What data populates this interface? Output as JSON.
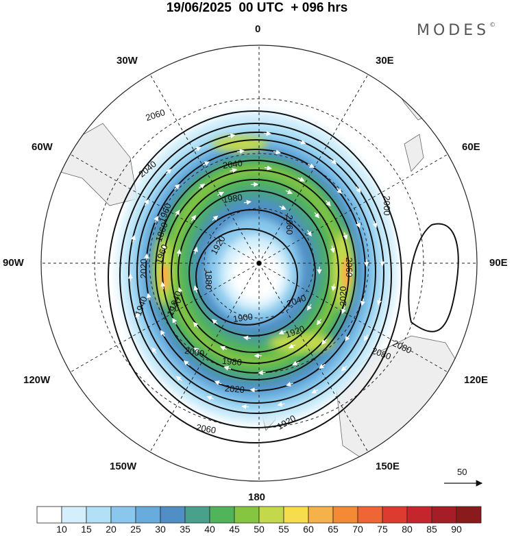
{
  "title": "19/06/2025  00 UTC  + 096 hrs",
  "brand": {
    "name": "MODES",
    "mark": "©"
  },
  "longitude_labels": {
    "top": "0",
    "bottom": "180",
    "left": "90W",
    "right": "90E",
    "upper_left_1": "30W",
    "upper_right_1": "30E",
    "upper_left_2": "60W",
    "upper_right_2": "60E",
    "lower_left_1": "120W",
    "lower_right_1": "120E",
    "lower_left_2": "150W",
    "lower_right_2": "150E"
  },
  "contour_labels": [
    "2060",
    "2040",
    "1980",
    "1920",
    "1880",
    "1860",
    "2060",
    "2000",
    "2060",
    "2080",
    "2040",
    "2020",
    "1960",
    "1940",
    "1900",
    "1920",
    "1940",
    "2020",
    "2040",
    "2060",
    "2080",
    "2020",
    "2000",
    "1980",
    "1960",
    "1940",
    "1920"
  ],
  "reference_vector": {
    "label": "50"
  },
  "colorbar": {
    "labels": [
      "10",
      "15",
      "20",
      "25",
      "30",
      "35",
      "40",
      "45",
      "50",
      "55",
      "60",
      "65",
      "70",
      "75",
      "80",
      "85",
      "90"
    ],
    "colors": [
      "#ffffff",
      "#d4effb",
      "#b2e1f6",
      "#89c8ec",
      "#67acdc",
      "#4f8fc6",
      "#49a18c",
      "#52b45a",
      "#86c540",
      "#c3d94b",
      "#f7dc4e",
      "#f6b24a",
      "#f58a34",
      "#ee6636",
      "#dd3b2f",
      "#c5262d",
      "#a51d25",
      "#8a1a1c"
    ]
  },
  "map_colors": {
    "land": "#eeeeee",
    "coast": "#666666",
    "graticule": "#222222",
    "contour": "#111111"
  }
}
